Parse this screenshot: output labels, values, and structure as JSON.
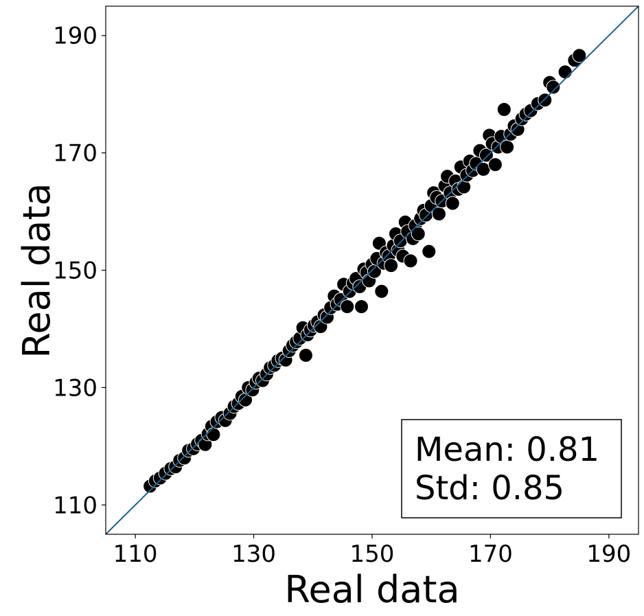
{
  "chart_data": {
    "type": "scatter",
    "title": "",
    "xlabel": "Real data",
    "ylabel": "Real data",
    "xlim": [
      105,
      195
    ],
    "ylim": [
      105,
      195
    ],
    "xticks": [
      110,
      130,
      150,
      170,
      190
    ],
    "yticks": [
      110,
      130,
      150,
      170,
      190
    ],
    "grid": false,
    "reference_line": {
      "from": [
        105,
        105
      ],
      "to": [
        195,
        195
      ],
      "color": "#1f5f8b"
    },
    "marker_color": "#000000",
    "marker_edge_color": "#ffffff",
    "stats_box": {
      "mean_label": "Mean: 0.81",
      "std_label": "Std: 0.85",
      "placement": "bottom-right"
    },
    "points": [
      [
        112.5,
        113.2
      ],
      [
        113.4,
        114.1
      ],
      [
        114.2,
        114.6
      ],
      [
        115.1,
        115.4
      ],
      [
        116.0,
        116.2
      ],
      [
        116.8,
        116.5
      ],
      [
        117.5,
        117.6
      ],
      [
        118.3,
        118.0
      ],
      [
        119.0,
        119.3
      ],
      [
        119.8,
        119.6
      ],
      [
        120.5,
        120.4
      ],
      [
        121.2,
        121.0
      ],
      [
        121.8,
        120.3
      ],
      [
        122.3,
        122.1
      ],
      [
        122.9,
        123.4
      ],
      [
        123.2,
        122.0
      ],
      [
        123.8,
        124.2
      ],
      [
        124.6,
        124.9
      ],
      [
        125.2,
        124.4
      ],
      [
        126.0,
        125.6
      ],
      [
        126.7,
        126.8
      ],
      [
        127.4,
        127.3
      ],
      [
        128.0,
        128.5
      ],
      [
        128.6,
        127.9
      ],
      [
        129.1,
        130.0
      ],
      [
        129.8,
        129.6
      ],
      [
        130.4,
        130.9
      ],
      [
        130.9,
        131.6
      ],
      [
        131.5,
        131.2
      ],
      [
        132.2,
        132.3
      ],
      [
        132.8,
        133.4
      ],
      [
        133.5,
        133.8
      ],
      [
        134.1,
        134.6
      ],
      [
        134.8,
        135.0
      ],
      [
        135.4,
        134.7
      ],
      [
        136.0,
        136.3
      ],
      [
        136.6,
        137.2
      ],
      [
        137.2,
        137.8
      ],
      [
        137.8,
        138.4
      ],
      [
        138.3,
        140.2
      ],
      [
        138.8,
        135.5
      ],
      [
        139.1,
        139.0
      ],
      [
        139.6,
        139.8
      ],
      [
        140.2,
        140.6
      ],
      [
        140.8,
        141.2
      ],
      [
        141.3,
        140.4
      ],
      [
        141.9,
        142.4
      ],
      [
        142.4,
        142.0
      ],
      [
        143.0,
        143.6
      ],
      [
        143.6,
        145.6
      ],
      [
        144.1,
        144.2
      ],
      [
        144.7,
        145.0
      ],
      [
        145.2,
        147.6
      ],
      [
        145.8,
        143.8
      ],
      [
        146.2,
        146.4
      ],
      [
        146.8,
        147.8
      ],
      [
        147.3,
        148.6
      ],
      [
        147.9,
        147.2
      ],
      [
        148.2,
        143.8
      ],
      [
        148.6,
        150.2
      ],
      [
        149.1,
        149.6
      ],
      [
        149.5,
        148.2
      ],
      [
        150.0,
        151.0
      ],
      [
        150.4,
        149.8
      ],
      [
        150.8,
        152.0
      ],
      [
        151.2,
        154.6
      ],
      [
        151.6,
        146.4
      ],
      [
        152.0,
        151.2
      ],
      [
        152.4,
        153.0
      ],
      [
        152.8,
        152.4
      ],
      [
        153.2,
        150.8
      ],
      [
        153.6,
        154.2
      ],
      [
        154.0,
        156.2
      ],
      [
        154.4,
        153.4
      ],
      [
        154.8,
        155.0
      ],
      [
        155.2,
        152.4
      ],
      [
        155.6,
        158.2
      ],
      [
        156.0,
        156.6
      ],
      [
        156.5,
        151.6
      ],
      [
        156.9,
        155.4
      ],
      [
        157.3,
        157.6
      ],
      [
        157.8,
        156.2
      ],
      [
        158.2,
        158.8
      ],
      [
        158.7,
        160.2
      ],
      [
        159.1,
        159.4
      ],
      [
        159.6,
        153.2
      ],
      [
        160.0,
        161.0
      ],
      [
        160.4,
        163.2
      ],
      [
        160.9,
        162.4
      ],
      [
        161.3,
        159.6
      ],
      [
        161.8,
        161.8
      ],
      [
        162.3,
        164.4
      ],
      [
        162.7,
        166.0
      ],
      [
        163.2,
        163.2
      ],
      [
        163.6,
        161.4
      ],
      [
        164.1,
        165.2
      ],
      [
        164.6,
        163.8
      ],
      [
        165.0,
        167.6
      ],
      [
        165.5,
        164.2
      ],
      [
        166.0,
        166.2
      ],
      [
        166.5,
        168.6
      ],
      [
        167.0,
        167.0
      ],
      [
        167.6,
        168.2
      ],
      [
        168.2,
        170.4
      ],
      [
        168.8,
        167.2
      ],
      [
        169.3,
        169.6
      ],
      [
        169.8,
        173.0
      ],
      [
        170.3,
        171.6
      ],
      [
        170.8,
        168.0
      ],
      [
        171.3,
        171.0
      ],
      [
        171.8,
        172.8
      ],
      [
        172.3,
        177.4
      ],
      [
        172.8,
        171.0
      ],
      [
        173.4,
        173.2
      ],
      [
        174.0,
        174.6
      ],
      [
        174.6,
        174.0
      ],
      [
        175.3,
        175.8
      ],
      [
        176.0,
        176.6
      ],
      [
        176.8,
        177.2
      ],
      [
        178.0,
        178.4
      ],
      [
        179.2,
        179.0
      ],
      [
        180.0,
        182.0
      ],
      [
        180.6,
        181.2
      ],
      [
        182.6,
        183.8
      ],
      [
        184.2,
        185.8
      ],
      [
        185.0,
        186.6
      ]
    ]
  }
}
